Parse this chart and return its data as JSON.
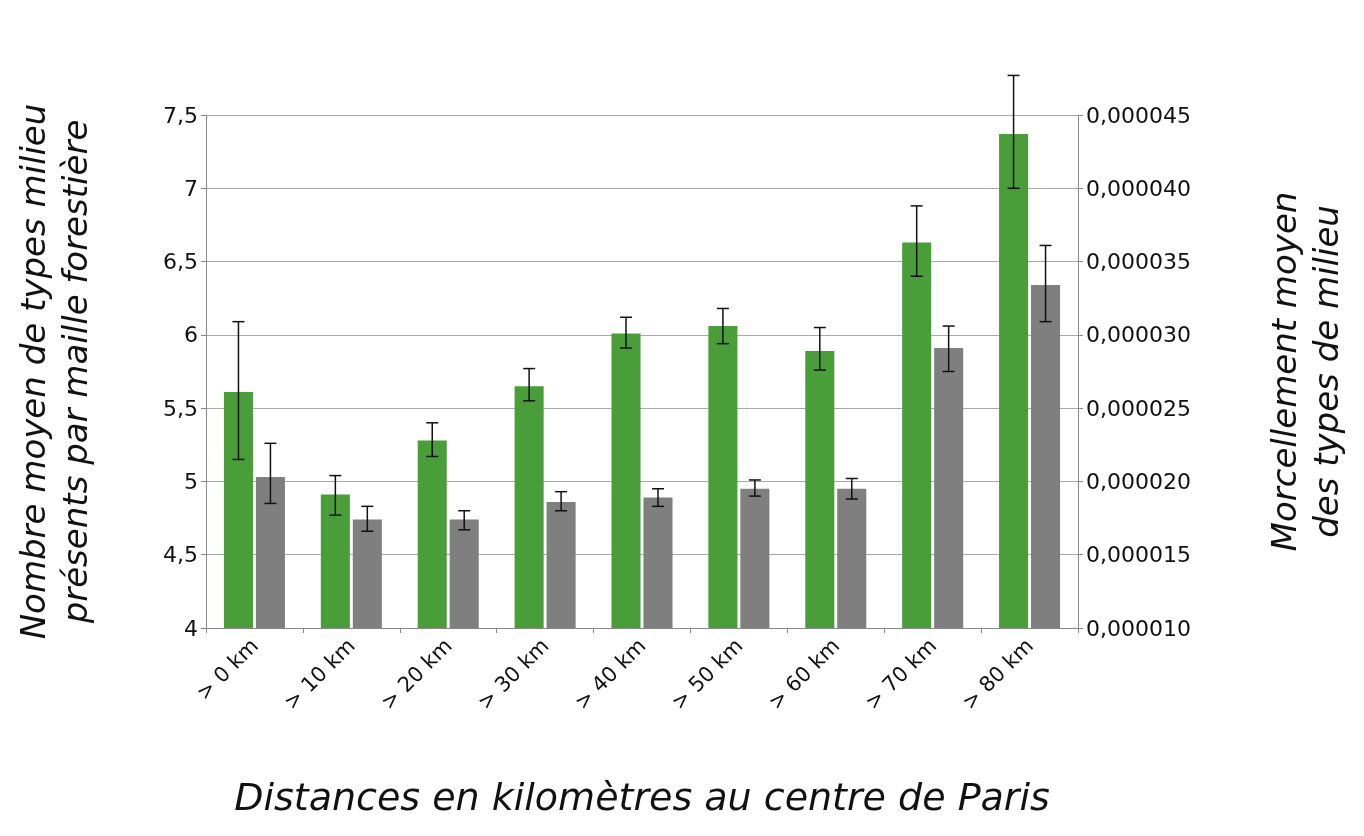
{
  "chart_data": {
    "type": "bar",
    "xlabel": "Distances en kilomètres au centre de Paris",
    "ylabel": "Nombre moyen de types milieu présents par maille forestière",
    "y2label": "Morcellement moyen des types de milieu",
    "categories": [
      "> 0 km",
      "> 10 km",
      "> 20 km",
      "> 30 km",
      "> 40 km",
      "> 50 km",
      "> 60 km",
      "> 70 km",
      "> 80 km"
    ],
    "series": [
      {
        "color": "#4a9e3a",
        "values": [
          5.61,
          4.91,
          5.28,
          5.65,
          6.01,
          6.06,
          5.89,
          6.63,
          7.37
        ],
        "errors": [
          [
            5.15,
            6.09
          ],
          [
            4.77,
            5.04
          ],
          [
            5.17,
            5.4
          ],
          [
            5.55,
            5.77
          ],
          [
            5.91,
            6.12
          ],
          [
            5.94,
            6.18
          ],
          [
            5.76,
            6.05
          ],
          [
            6.4,
            6.88
          ],
          [
            7.0,
            7.77
          ]
        ]
      },
      {
        "color": "#7f7f7f",
        "axis": "y2",
        "values": [
          2.03e-05,
          1.74e-05,
          1.74e-05,
          1.86e-05,
          1.89e-05,
          1.95e-05,
          1.95e-05,
          2.91e-05,
          3.34e-05
        ],
        "errors": [
          [
            1.85e-05,
            2.26e-05
          ],
          [
            1.66e-05,
            1.83e-05
          ],
          [
            1.67e-05,
            1.8e-05
          ],
          [
            1.8e-05,
            1.93e-05
          ],
          [
            1.83e-05,
            1.95e-05
          ],
          [
            1.9e-05,
            2.01e-05
          ],
          [
            1.88e-05,
            2.02e-05
          ],
          [
            2.75e-05,
            3.06e-05
          ],
          [
            3.09e-05,
            3.61e-05
          ]
        ]
      }
    ],
    "ylim": [
      4,
      7.5
    ],
    "yticks": [
      4,
      {
        "value": 4.5,
        "label": "4,5"
      },
      5,
      {
        "value": 5.5,
        "label": "5,5"
      },
      6,
      {
        "value": 6.5,
        "label": "6,5"
      },
      7,
      {
        "value": 7.5,
        "label": "7,5"
      }
    ],
    "y2lim": [
      1e-05,
      4.5e-05
    ],
    "y2ticks": [
      {
        "value": 1e-05,
        "label": "0,000010"
      },
      {
        "value": 1.5e-05,
        "label": "0,000015"
      },
      {
        "value": 2e-05,
        "label": "0,000020"
      },
      {
        "value": 2.5e-05,
        "label": "0,000025"
      },
      {
        "value": 3e-05,
        "label": "0,000030"
      },
      {
        "value": 3.5e-05,
        "label": "0,000035"
      },
      {
        "value": 4e-05,
        "label": "0,000040"
      },
      {
        "value": 4.5e-05,
        "label": "0,000045"
      }
    ],
    "grid": "y"
  }
}
